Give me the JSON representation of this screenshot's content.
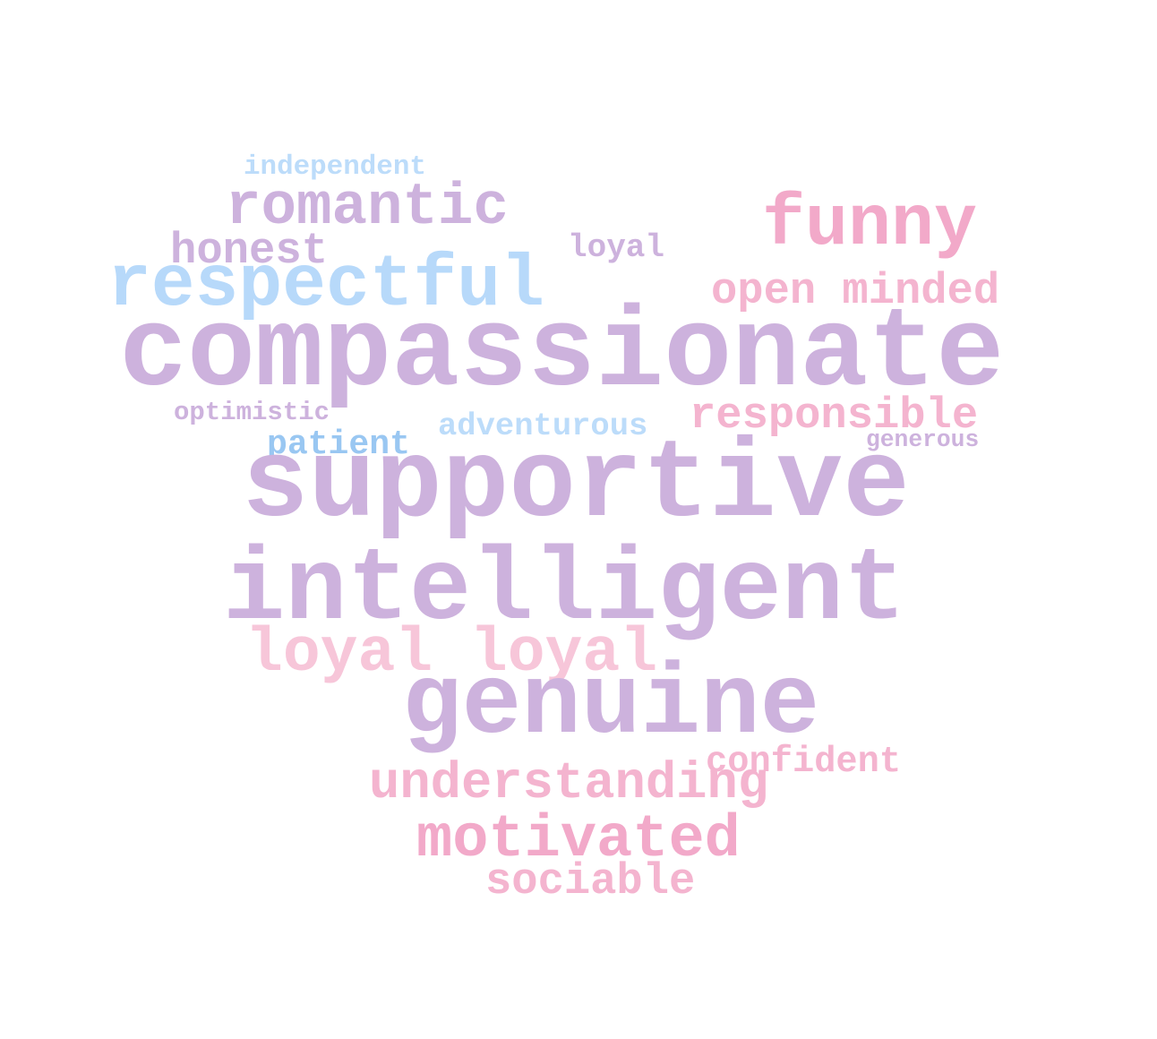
{
  "words": [
    {
      "text": "independent",
      "color": "#bcdcfa"
    },
    {
      "text": "romantic",
      "color": "#cdb2dd"
    },
    {
      "text": "funny",
      "color": "#f2a9c9"
    },
    {
      "text": "honest",
      "color": "#cdb2dd"
    },
    {
      "text": "loyal",
      "color": "#cdb2dd"
    },
    {
      "text": "respectful",
      "color": "#b7d9fa"
    },
    {
      "text": "open minded",
      "color": "#f4b4cf"
    },
    {
      "text": "compassionate",
      "color": "#cdb2dd"
    },
    {
      "text": "optimistic",
      "color": "#cdb2dd"
    },
    {
      "text": "adventurous",
      "color": "#bcdcfa"
    },
    {
      "text": "responsible",
      "color": "#f4b4cf"
    },
    {
      "text": "patient",
      "color": "#99c7f2"
    },
    {
      "text": "generous",
      "color": "#cdb2dd"
    },
    {
      "text": "supportive",
      "color": "#cdb2dd"
    },
    {
      "text": "intelligent",
      "color": "#cdb2dd"
    },
    {
      "text": "loyal loyal",
      "color": "#f7c6d9"
    },
    {
      "text": "genuine",
      "color": "#cdb2dd"
    },
    {
      "text": "confident",
      "color": "#f4b4cf"
    },
    {
      "text": "understanding",
      "color": "#f4b4cf"
    },
    {
      "text": "motivated",
      "color": "#f2a9c9"
    },
    {
      "text": "sociable",
      "color": "#f4b4cf"
    }
  ]
}
